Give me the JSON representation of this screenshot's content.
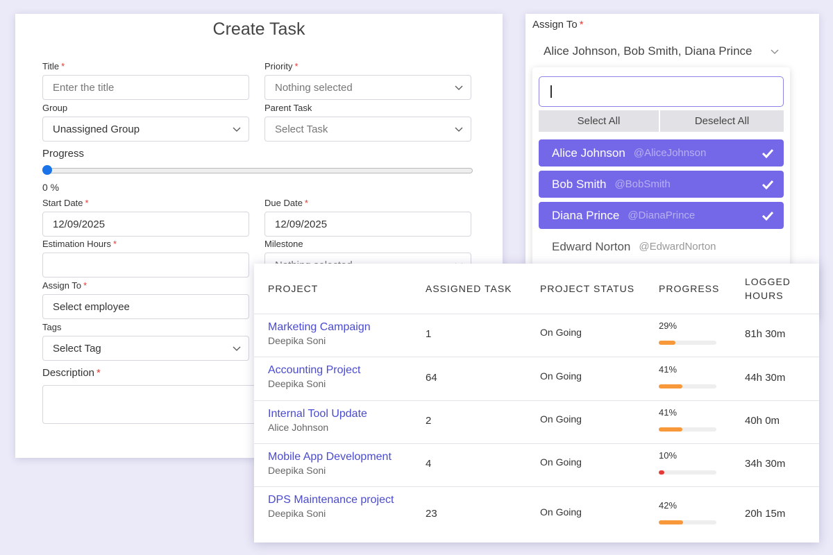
{
  "create_task": {
    "title": "Create Task",
    "required_mark": "*",
    "fields": [
      {
        "label": "Title",
        "required": true,
        "placeholder": "Enter the title",
        "kind": "text"
      },
      {
        "label": "Priority",
        "required": true,
        "placeholder": "Nothing selected",
        "kind": "select"
      },
      {
        "label": "Group",
        "required": false,
        "value": "Unassigned Group",
        "kind": "select"
      },
      {
        "label": "Parent Task",
        "required": false,
        "placeholder": "Select Task",
        "kind": "select"
      },
      {
        "label": "Start Date",
        "required": true,
        "value": "12/09/2025",
        "kind": "text"
      },
      {
        "label": "Due Date",
        "required": true,
        "value": "12/09/2025",
        "kind": "text"
      },
      {
        "label": "Estimation Hours",
        "required": true,
        "kind": "text"
      },
      {
        "label": "Milestone",
        "required": false,
        "placeholder": "Nothing selected",
        "kind": "select"
      },
      {
        "label": "Assign To",
        "required": true,
        "value": "Select employee",
        "kind": "text"
      },
      {
        "label": "Tags",
        "required": false,
        "value": "Select Tag",
        "kind": "select"
      }
    ],
    "progress": {
      "label": "Progress",
      "value_text": "0 %"
    },
    "description": {
      "label": "Description",
      "required": true
    }
  },
  "assign_panel": {
    "label": "Assign To",
    "required": true,
    "selected_text": "Alice Johnson, Bob Smith, Diana Prince",
    "select_all": "Select All",
    "deselect_all": "Deselect All",
    "options": [
      {
        "name": "Alice Johnson",
        "handle": "@AliceJohnson",
        "selected": true
      },
      {
        "name": "Bob Smith",
        "handle": "@BobSmith",
        "selected": true
      },
      {
        "name": "Diana Prince",
        "handle": "@DianaPrince",
        "selected": true
      },
      {
        "name": "Edward Norton",
        "handle": "@EdwardNorton",
        "selected": false
      }
    ]
  },
  "table": {
    "headers": [
      "PROJECT",
      "ASSIGNED TASK",
      "PROJECT STATUS",
      "PROGRESS",
      "LOGGED HOURS"
    ],
    "rows": [
      {
        "project": "Marketing Campaign",
        "owner": "Deepika Soni",
        "tasks": 1,
        "status": "On Going",
        "progress": {
          "value": 29,
          "label": "29%"
        },
        "bar_color": "#f7993a",
        "hours": "81h 30m"
      },
      {
        "project": "Accounting Project",
        "owner": "Deepika Soni",
        "tasks": 64,
        "status": "On Going",
        "progress": {
          "value": 41,
          "label": "41%"
        },
        "bar_color": "#f7993a",
        "hours": "44h 30m"
      },
      {
        "project": "Internal Tool Update",
        "owner": "Alice Johnson",
        "tasks": 2,
        "status": "On Going",
        "progress": {
          "value": 41,
          "label": "41%"
        },
        "bar_color": "#f7993a",
        "hours": "40h 0m"
      },
      {
        "project": "Mobile App Development",
        "owner": "Deepika Soni",
        "tasks": 4,
        "status": "On Going",
        "progress": {
          "value": 10,
          "label": "10%"
        },
        "bar_color": "#e53935",
        "hours": "34h 30m"
      },
      {
        "project": "DPS Maintenance project",
        "owner": "Deepika Soni",
        "tasks": 23,
        "status": "On Going",
        "progress": {
          "value": 42,
          "label": "42%"
        },
        "bar_color": "#f7993a",
        "hours": "20h 15m"
      }
    ]
  }
}
